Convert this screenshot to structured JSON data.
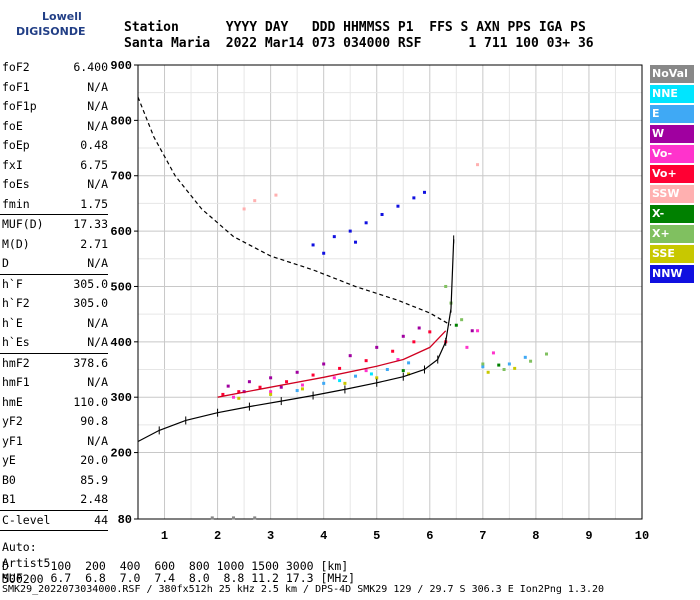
{
  "logo": {
    "line1": "Lowell",
    "line2": "DIGISONDE"
  },
  "header": {
    "row1": "Station      YYYY DAY   DDD HHMMSS P1  FFS S AXN PPS IGA PS",
    "row2": "Santa Maria  2022 Mar14 073 034000 RSF      1 711 100 03+ 36"
  },
  "params": [
    {
      "label": "foF2",
      "value": "6.400"
    },
    {
      "label": "foF1",
      "value": "N/A"
    },
    {
      "label": "foF1p",
      "value": "N/A"
    },
    {
      "label": "foE",
      "value": "N/A"
    },
    {
      "label": "foEp",
      "value": "0.48"
    },
    {
      "label": "fxI",
      "value": "6.75"
    },
    {
      "label": "foEs",
      "value": "N/A"
    },
    {
      "label": "fmin",
      "value": "1.75"
    },
    {
      "sep": true
    },
    {
      "label": "MUF(D)",
      "value": "17.33"
    },
    {
      "label": "M(D)",
      "value": "2.71"
    },
    {
      "label": "D",
      "value": "N/A"
    },
    {
      "sep": true
    },
    {
      "label": "h`F",
      "value": "305.0"
    },
    {
      "label": "h`F2",
      "value": "305.0"
    },
    {
      "label": "h`E",
      "value": "N/A"
    },
    {
      "label": "h`Es",
      "value": "N/A"
    },
    {
      "sep": true
    },
    {
      "label": "hmF2",
      "value": "378.6"
    },
    {
      "label": "hmF1",
      "value": "N/A"
    },
    {
      "label": "hmE",
      "value": "110.0"
    },
    {
      "label": "yF2",
      "value": "90.8"
    },
    {
      "label": "yF1",
      "value": "N/A"
    },
    {
      "label": "yE",
      "value": "20.0"
    },
    {
      "label": "B0",
      "value": "85.9"
    },
    {
      "label": "B1",
      "value": "2.48"
    },
    {
      "sep": true
    },
    {
      "label": "C-level",
      "value": "44"
    },
    {
      "sep": true
    }
  ],
  "auto_lines": [
    "Auto:",
    "Artist5",
    "500200"
  ],
  "legend": [
    {
      "label": "NoVal",
      "color": "#888888"
    },
    {
      "label": "NNE",
      "color": "#00e5ff"
    },
    {
      "label": "E",
      "color": "#3fa9f5"
    },
    {
      "label": "W",
      "color": "#a000a0"
    },
    {
      "label": "Vo-",
      "color": "#ff33cc"
    },
    {
      "label": "Vo+",
      "color": "#ff0033"
    },
    {
      "label": "SSW",
      "color": "#ffb0b0"
    },
    {
      "label": "X-",
      "color": "#008000"
    },
    {
      "label": "X+",
      "color": "#80c060"
    },
    {
      "label": "SSE",
      "color": "#c8c800"
    },
    {
      "label": "NNW",
      "color": "#1010e0"
    }
  ],
  "footer": {
    "d_row": "D      100  200  400  600  800 1000 1500 3000 [km]",
    "muf_row": "MUF    6.7  6.8  7.0  7.4  8.0  8.8 11.2 17.3 [MHz]",
    "strip": "SMK29_2022073034000.RSF / 380fx512h 25 kHz 2.5 km / DPS-4D SMK29 129 / 29.7 S 306.3 E Ion2Png 1.3.20"
  },
  "chart_data": {
    "type": "scatter",
    "xlim": [
      0.5,
      10
    ],
    "ylim": [
      80,
      900
    ],
    "x_ticks": [
      1,
      2,
      3,
      4,
      5,
      6,
      7,
      8,
      9,
      10
    ],
    "y_ticks": [
      80,
      200,
      300,
      400,
      500,
      600,
      700,
      800,
      900
    ],
    "grid": true,
    "series": [
      {
        "name": "NNW",
        "color": "#1010e0",
        "points": [
          [
            3.8,
            575
          ],
          [
            4.2,
            590
          ],
          [
            4.5,
            600
          ],
          [
            4.8,
            615
          ],
          [
            5.1,
            630
          ],
          [
            5.4,
            645
          ],
          [
            5.7,
            660
          ],
          [
            5.9,
            670
          ],
          [
            4.0,
            560
          ],
          [
            4.6,
            580
          ]
        ]
      },
      {
        "name": "W",
        "color": "#a000a0",
        "points": [
          [
            2.2,
            320
          ],
          [
            2.6,
            328
          ],
          [
            3.0,
            335
          ],
          [
            3.5,
            345
          ],
          [
            4.0,
            360
          ],
          [
            4.5,
            375
          ],
          [
            5.0,
            390
          ],
          [
            5.5,
            410
          ],
          [
            5.8,
            425
          ],
          [
            2.5,
            310
          ],
          [
            3.2,
            318
          ],
          [
            6.8,
            420
          ]
        ]
      },
      {
        "name": "Vo+",
        "color": "#ff0033",
        "points": [
          [
            2.1,
            305
          ],
          [
            2.4,
            310
          ],
          [
            2.8,
            318
          ],
          [
            3.3,
            328
          ],
          [
            3.8,
            340
          ],
          [
            4.3,
            352
          ],
          [
            4.8,
            366
          ],
          [
            5.3,
            383
          ],
          [
            5.7,
            400
          ],
          [
            6.0,
            418
          ],
          [
            6.3,
            400
          ]
        ]
      },
      {
        "name": "Vo-",
        "color": "#ff33cc",
        "points": [
          [
            2.3,
            300
          ],
          [
            3.0,
            310
          ],
          [
            3.6,
            322
          ],
          [
            4.2,
            335
          ],
          [
            4.8,
            348
          ],
          [
            5.4,
            368
          ],
          [
            6.7,
            390
          ],
          [
            6.9,
            420
          ],
          [
            7.2,
            380
          ]
        ]
      },
      {
        "name": "E",
        "color": "#3fa9f5",
        "points": [
          [
            3.5,
            312
          ],
          [
            4.0,
            325
          ],
          [
            4.6,
            338
          ],
          [
            5.2,
            350
          ],
          [
            5.6,
            362
          ],
          [
            7.0,
            355
          ],
          [
            7.5,
            360
          ],
          [
            7.8,
            372
          ]
        ]
      },
      {
        "name": "X+",
        "color": "#80c060",
        "points": [
          [
            6.4,
            470
          ],
          [
            6.6,
            440
          ],
          [
            7.0,
            360
          ],
          [
            7.4,
            350
          ],
          [
            7.9,
            365
          ],
          [
            8.2,
            378
          ],
          [
            6.3,
            500
          ]
        ]
      },
      {
        "name": "SSE",
        "color": "#c8c800",
        "points": [
          [
            2.4,
            298
          ],
          [
            3.0,
            305
          ],
          [
            3.6,
            315
          ],
          [
            4.4,
            325
          ],
          [
            5.0,
            335
          ],
          [
            5.6,
            342
          ],
          [
            7.1,
            345
          ],
          [
            7.6,
            352
          ]
        ]
      },
      {
        "name": "X-",
        "color": "#008000",
        "points": [
          [
            5.5,
            348
          ],
          [
            6.5,
            430
          ],
          [
            7.3,
            358
          ]
        ]
      },
      {
        "name": "SSW",
        "color": "#ffb0b0",
        "points": [
          [
            2.5,
            640
          ],
          [
            2.7,
            655
          ],
          [
            6.9,
            720
          ],
          [
            3.1,
            665
          ]
        ]
      },
      {
        "name": "NNE",
        "color": "#00e5ff",
        "points": [
          [
            4.3,
            330
          ],
          [
            4.9,
            342
          ]
        ]
      },
      {
        "name": "NoVal",
        "color": "#888888",
        "points": [
          [
            1.9,
            82
          ],
          [
            2.3,
            82
          ],
          [
            2.7,
            82
          ]
        ]
      }
    ],
    "profile": [
      [
        0.5,
        220
      ],
      [
        0.9,
        240
      ],
      [
        1.4,
        258
      ],
      [
        2.0,
        272
      ],
      [
        2.6,
        283
      ],
      [
        3.2,
        293
      ],
      [
        3.8,
        303
      ],
      [
        4.4,
        314
      ],
      [
        5.0,
        326
      ],
      [
        5.5,
        337
      ],
      [
        5.9,
        350
      ],
      [
        6.15,
        368
      ],
      [
        6.3,
        400
      ],
      [
        6.4,
        460
      ],
      [
        6.45,
        585
      ]
    ],
    "muf_curve": [
      [
        0.5,
        842
      ],
      [
        0.8,
        770
      ],
      [
        1.2,
        700
      ],
      [
        1.7,
        640
      ],
      [
        2.3,
        590
      ],
      [
        3.0,
        555
      ],
      [
        3.8,
        530
      ],
      [
        4.6,
        500
      ],
      [
        5.4,
        475
      ],
      [
        6.0,
        452
      ],
      [
        6.4,
        430
      ]
    ],
    "trace": [
      [
        2.0,
        300
      ],
      [
        3.0,
        318
      ],
      [
        4.0,
        336
      ],
      [
        5.0,
        356
      ],
      [
        5.5,
        368
      ],
      [
        6.0,
        390
      ],
      [
        6.3,
        420
      ]
    ]
  }
}
